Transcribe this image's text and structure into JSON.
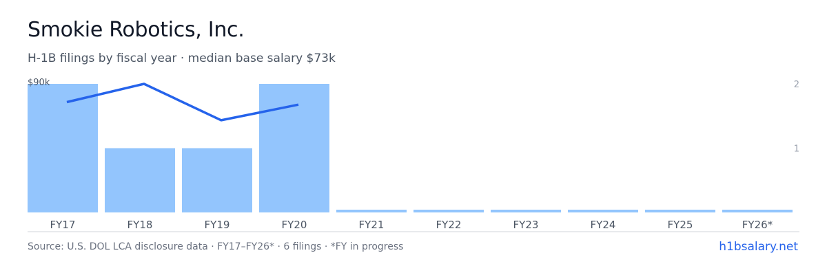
{
  "header": {
    "title": "Smokie Robotics, Inc.",
    "subtitle": "H-1B filings by fiscal year · median base salary $73k"
  },
  "footer": {
    "source": "Source: U.S. DOL LCA disclosure data · FY17–FY26* · 6 filings · *FY in progress",
    "brand": "h1bsalary.net"
  },
  "colors": {
    "bar": "#93c5fd",
    "line": "#2563eb",
    "axis_text": "#9ca3af",
    "tick_text": "#4b5563",
    "baseline": "#d1d5db"
  },
  "chart_data": {
    "type": "bar",
    "categories": [
      "FY17",
      "FY18",
      "FY19",
      "FY20",
      "FY21",
      "FY22",
      "FY23",
      "FY24",
      "FY25",
      "FY26*"
    ],
    "series": [
      {
        "type": "bar",
        "axis": "right",
        "values": [
          2,
          1,
          1,
          2,
          0,
          0,
          0,
          0,
          0,
          0
        ]
      },
      {
        "type": "line",
        "axis": "left",
        "values": [
          83,
          90,
          76,
          82,
          null,
          null,
          null,
          null,
          null,
          null
        ]
      }
    ],
    "left_axis": {
      "label": "$90k",
      "max": 90
    },
    "right_axis": {
      "ticks": [
        "2",
        "1"
      ],
      "max": 2
    },
    "legend": "none",
    "grid": false
  }
}
